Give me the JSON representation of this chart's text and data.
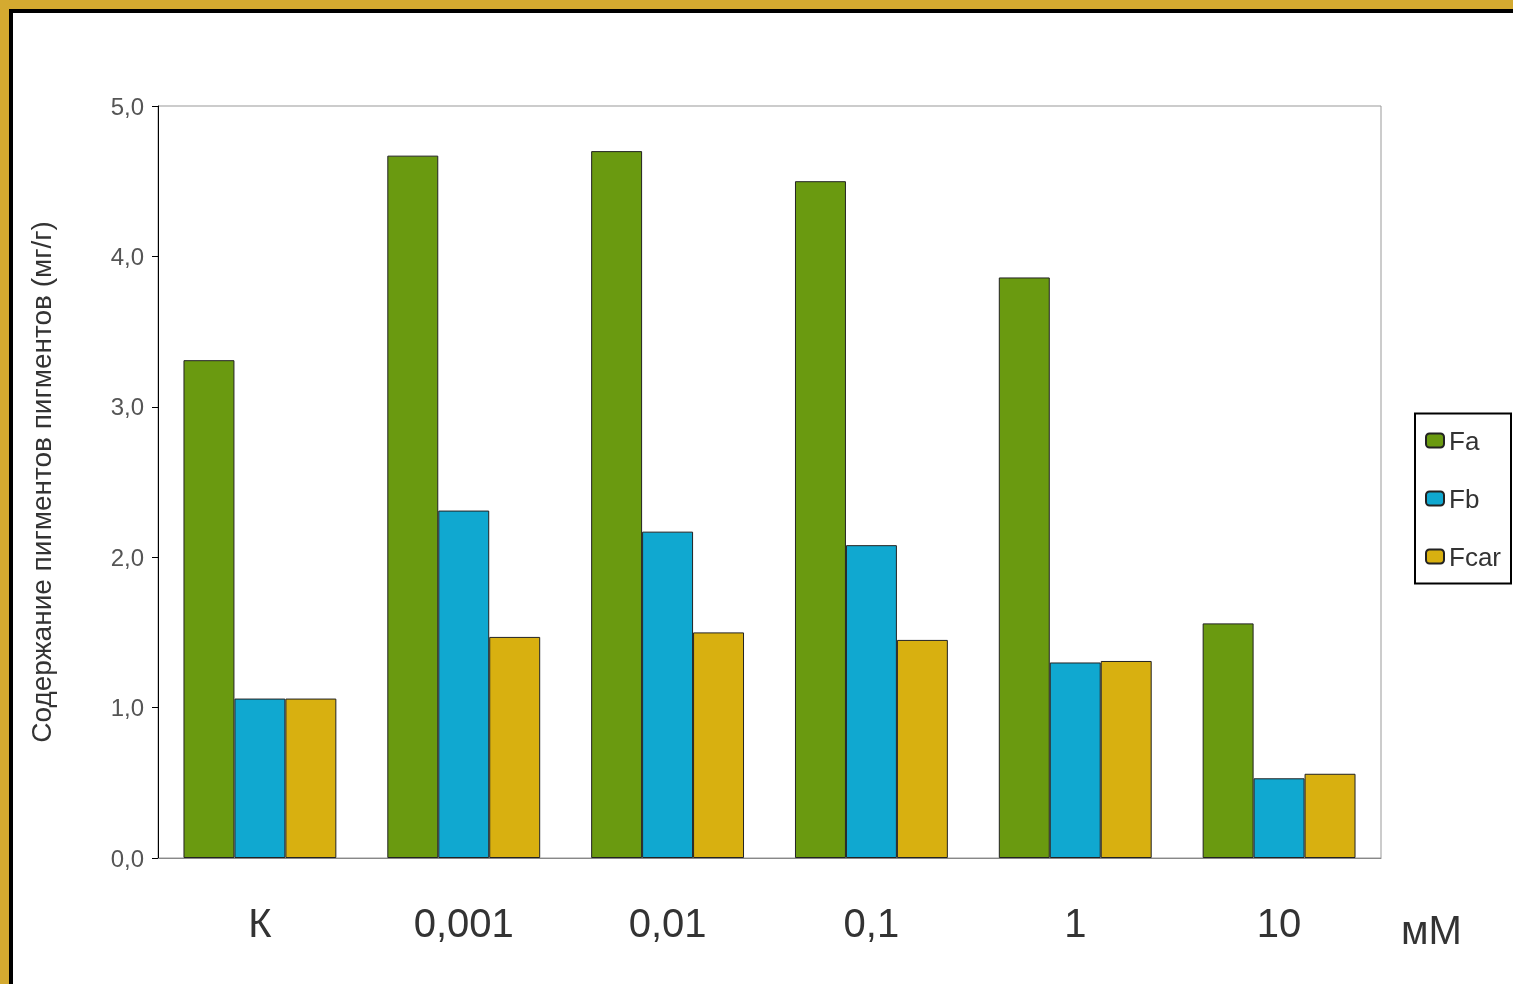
{
  "chart_data": {
    "type": "bar",
    "ylabel": "Содержание пигментов пигментов (мг/г)",
    "xlabel": "мМ",
    "categories": [
      "К",
      "0,001",
      "0,01",
      "0,1",
      "1",
      "10"
    ],
    "series": [
      {
        "name": "Fa",
        "color": "#6a9a10",
        "values": [
          3.31,
          4.67,
          4.7,
          4.5,
          3.86,
          1.56
        ]
      },
      {
        "name": "Fb",
        "color": "#10a8d0",
        "values": [
          1.06,
          2.31,
          2.17,
          2.08,
          1.3,
          0.53
        ]
      },
      {
        "name": "Fcar",
        "color": "#d8b010",
        "values": [
          1.06,
          1.47,
          1.5,
          1.45,
          1.31,
          0.56
        ]
      }
    ],
    "ylim": [
      0,
      5
    ],
    "yticks": [
      {
        "value": 0,
        "label": "0,0"
      },
      {
        "value": 1,
        "label": "1,0"
      },
      {
        "value": 2,
        "label": "2,0"
      },
      {
        "value": 3,
        "label": "3,0"
      },
      {
        "value": 4,
        "label": "4,0"
      },
      {
        "value": 5,
        "label": "5,0"
      }
    ],
    "grid": false,
    "legend": "right"
  }
}
